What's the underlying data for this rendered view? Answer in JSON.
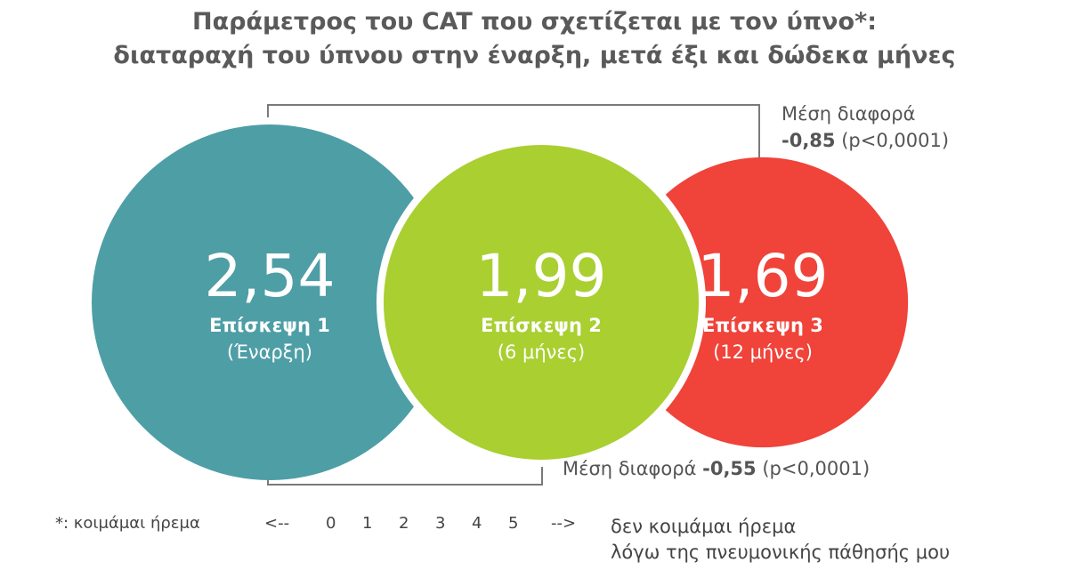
{
  "title": {
    "line1": "Παράμετρος του CAT που σχετίζεται με τον ύπνο*:",
    "line2": "διαταραχή του ύπνου στην έναρξη, μετά έξι και δώδεκα μήνες"
  },
  "chart_data": {
    "type": "bubble",
    "categories": [
      "Επίσκεψη 1",
      "Επίσκεψη 2",
      "Επίσκεψη 3"
    ],
    "subtitles": [
      "(Έναρξη)",
      "(6 μήνες)",
      "(12 μήνες)"
    ],
    "value_labels": [
      "2,54",
      "1,99",
      "1,69"
    ],
    "values": [
      2.54,
      1.99,
      1.69
    ],
    "colors": [
      "#4e9ea6",
      "#a9cf31",
      "#f0433a"
    ]
  },
  "annotations": {
    "top": {
      "label": "Μέση διαφορά",
      "value": "-0,85",
      "p": "(p<0,0001)"
    },
    "bottom": {
      "label": "Μέση διαφορά",
      "value": "-0,55",
      "p": "(p<0,0001)"
    }
  },
  "footer": {
    "left_label": "*: κοιμάμαι ήρεμα",
    "arrow_left": "<--",
    "scale": [
      "0",
      "1",
      "2",
      "3",
      "4",
      "5"
    ],
    "arrow_right": "-->",
    "right_line1": "δεν κοιμάμαι ήρεμα",
    "right_line2": "λόγω της πνευμονικής πάθησής μου"
  }
}
